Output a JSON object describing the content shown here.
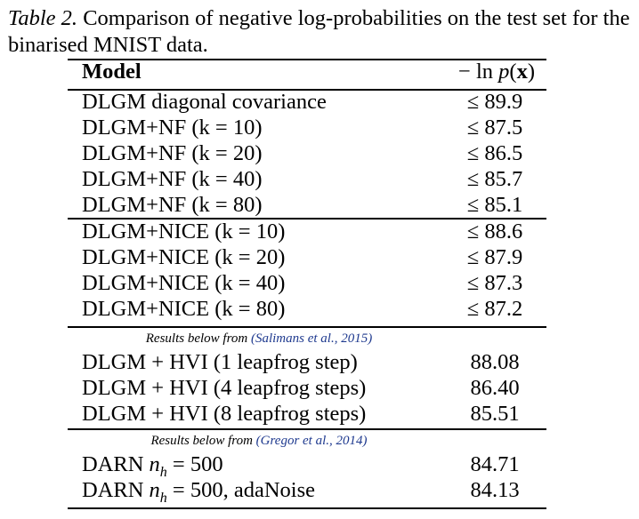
{
  "caption": {
    "label": "Table 2.",
    "text": "Comparison of negative log-probabilities on the test set for the binarised MNIST data."
  },
  "header": {
    "model": "Model",
    "metric": "− ln p(x)"
  },
  "groups": [
    {
      "rows": [
        {
          "model": "DLGM diagonal covariance",
          "value": "≤ 89.9"
        },
        {
          "model": "DLGM+NF (k = 10)",
          "value": "≤ 87.5"
        },
        {
          "model": "DLGM+NF (k = 20)",
          "value": "≤ 86.5"
        },
        {
          "model": "DLGM+NF (k = 40)",
          "value": "≤ 85.7"
        },
        {
          "model": "DLGM+NF (k = 80)",
          "value": "≤ 85.1"
        }
      ]
    },
    {
      "rows": [
        {
          "model": "DLGM+NICE (k = 10)",
          "value": "≤ 88.6"
        },
        {
          "model": "DLGM+NICE (k = 20)",
          "value": "≤ 87.9"
        },
        {
          "model": "DLGM+NICE (k = 40)",
          "value": "≤ 87.3"
        },
        {
          "model": "DLGM+NICE (k = 80)",
          "value": "≤ 87.2"
        }
      ]
    },
    {
      "note": "Results below from ",
      "citation": "(Salimans et al., 2015)",
      "rows": [
        {
          "model": "DLGM + HVI (1 leapfrog step)",
          "value": "88.08"
        },
        {
          "model": "DLGM + HVI (4 leapfrog steps)",
          "value": "86.40"
        },
        {
          "model": "DLGM + HVI (8 leapfrog steps)",
          "value": "85.51"
        }
      ]
    },
    {
      "note": "Results below from ",
      "citation": "(Gregor et al., 2014)",
      "rows": [
        {
          "model_prefix": "DARN ",
          "model_var": "n",
          "model_sub": "h",
          "model_suffix": " = 500",
          "value": "84.71"
        },
        {
          "model_prefix": "DARN ",
          "model_var": "n",
          "model_sub": "h",
          "model_suffix": " = 500, adaNoise",
          "value": "84.13"
        }
      ]
    }
  ]
}
